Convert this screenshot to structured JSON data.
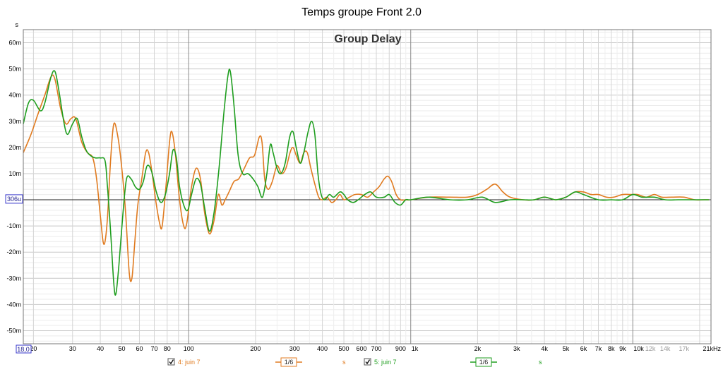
{
  "chart_data": {
    "type": "line",
    "title": "Temps groupe Front 2.0",
    "subtitle": "Group Delay",
    "y_unit_label": "s",
    "x_scale": "log",
    "xlim": [
      18,
      22500
    ],
    "ylim": [
      -0.055,
      0.065
    ],
    "grid": true,
    "y_ticks": [
      {
        "v": 0.06,
        "label": "60m"
      },
      {
        "v": 0.05,
        "label": "50m"
      },
      {
        "v": 0.04,
        "label": "40m"
      },
      {
        "v": 0.03,
        "label": "30m"
      },
      {
        "v": 0.02,
        "label": "20m"
      },
      {
        "v": 0.01,
        "label": "10m"
      },
      {
        "v": -0.01,
        "label": "-10m"
      },
      {
        "v": -0.02,
        "label": "-20m"
      },
      {
        "v": -0.03,
        "label": "-30m"
      },
      {
        "v": -0.04,
        "label": "-40m"
      },
      {
        "v": -0.05,
        "label": "-50m"
      }
    ],
    "y_marker": {
      "v": 0.000306,
      "label": "306u"
    },
    "x_marker": {
      "v": 18,
      "label": "18,0"
    },
    "x_ticks": [
      {
        "v": 20,
        "label": "20"
      },
      {
        "v": 30,
        "label": "30"
      },
      {
        "v": 40,
        "label": "40"
      },
      {
        "v": 50,
        "label": "50"
      },
      {
        "v": 60,
        "label": "60"
      },
      {
        "v": 70,
        "label": "70"
      },
      {
        "v": 80,
        "label": "80"
      },
      {
        "v": 100,
        "label": "100"
      },
      {
        "v": 200,
        "label": "200"
      },
      {
        "v": 300,
        "label": "300"
      },
      {
        "v": 400,
        "label": "400"
      },
      {
        "v": 500,
        "label": "500"
      },
      {
        "v": 600,
        "label": "600"
      },
      {
        "v": 700,
        "label": "700"
      },
      {
        "v": 900,
        "label": "900"
      },
      {
        "v": 1000,
        "label": "1k"
      },
      {
        "v": 2000,
        "label": "2k"
      },
      {
        "v": 3000,
        "label": "3k"
      },
      {
        "v": 4000,
        "label": "4k"
      },
      {
        "v": 5000,
        "label": "5k"
      },
      {
        "v": 6000,
        "label": "6k"
      },
      {
        "v": 7000,
        "label": "7k"
      },
      {
        "v": 8000,
        "label": "8k"
      },
      {
        "v": 9000,
        "label": "9k"
      },
      {
        "v": 10000,
        "label": "10k"
      },
      {
        "v": 12000,
        "label": "12k",
        "minor": true
      },
      {
        "v": 14000,
        "label": "14k",
        "minor": true
      },
      {
        "v": 17000,
        "label": "17k",
        "minor": true
      },
      {
        "v": 21000,
        "label": "21kHz"
      }
    ],
    "series": [
      {
        "name": "4: juin 7",
        "color": "#e07b20",
        "smoothing": "1/6",
        "unit": "s",
        "points": [
          [
            18,
            0.018
          ],
          [
            19.5,
            0.025
          ],
          [
            21,
            0.033
          ],
          [
            22.5,
            0.04
          ],
          [
            24,
            0.047
          ],
          [
            25,
            0.046
          ],
          [
            26.5,
            0.035
          ],
          [
            28,
            0.029
          ],
          [
            29.5,
            0.031
          ],
          [
            31,
            0.031
          ],
          [
            33,
            0.022
          ],
          [
            35,
            0.018
          ],
          [
            37,
            0.016
          ],
          [
            38.5,
            0.008
          ],
          [
            40,
            -0.006
          ],
          [
            41.5,
            -0.017
          ],
          [
            43,
            -0.008
          ],
          [
            44.5,
            0.015
          ],
          [
            46,
            0.029
          ],
          [
            48,
            0.024
          ],
          [
            50,
            0.012
          ],
          [
            52,
            -0.005
          ],
          [
            54,
            -0.028
          ],
          [
            55.5,
            -0.03
          ],
          [
            57,
            -0.018
          ],
          [
            59,
            -0.002
          ],
          [
            61.5,
            0.008
          ],
          [
            64,
            0.018
          ],
          [
            66,
            0.018
          ],
          [
            68.5,
            0.01
          ],
          [
            71,
            0.0
          ],
          [
            74,
            -0.009
          ],
          [
            76,
            -0.01
          ],
          [
            79,
            0.005
          ],
          [
            82,
            0.022
          ],
          [
            84,
            0.026
          ],
          [
            87,
            0.018
          ],
          [
            91,
            0.0
          ],
          [
            95,
            -0.01
          ],
          [
            98,
            -0.009
          ],
          [
            103,
            0.005
          ],
          [
            108,
            0.012
          ],
          [
            113,
            0.008
          ],
          [
            118,
            -0.005
          ],
          [
            124,
            -0.013
          ],
          [
            130,
            -0.008
          ],
          [
            136,
            0.002
          ],
          [
            141,
            -0.002
          ],
          [
            146,
            0.0
          ],
          [
            152,
            0.003
          ],
          [
            160,
            0.007
          ],
          [
            168,
            0.008
          ],
          [
            178,
            0.012
          ],
          [
            188,
            0.016
          ],
          [
            198,
            0.017
          ],
          [
            208,
            0.024
          ],
          [
            214,
            0.022
          ],
          [
            220,
            0.008
          ],
          [
            228,
            0.004
          ],
          [
            238,
            0.007
          ],
          [
            250,
            0.013
          ],
          [
            262,
            0.01
          ],
          [
            274,
            0.012
          ],
          [
            286,
            0.018
          ],
          [
            295,
            0.02
          ],
          [
            305,
            0.017
          ],
          [
            318,
            0.014
          ],
          [
            330,
            0.018
          ],
          [
            342,
            0.018
          ],
          [
            355,
            0.012
          ],
          [
            370,
            0.006
          ],
          [
            385,
            0.001
          ],
          [
            400,
            0.0
          ],
          [
            420,
            0.001
          ],
          [
            440,
            -0.001
          ],
          [
            460,
            0.0
          ],
          [
            480,
            0.002
          ],
          [
            500,
            0.0
          ],
          [
            530,
            0.001
          ],
          [
            560,
            0.002
          ],
          [
            600,
            0.002
          ],
          [
            640,
            0.001
          ],
          [
            680,
            0.003
          ],
          [
            720,
            0.005
          ],
          [
            760,
            0.008
          ],
          [
            790,
            0.009
          ],
          [
            820,
            0.007
          ],
          [
            860,
            0.002
          ],
          [
            900,
            0.0
          ],
          [
            950,
            0.0
          ],
          [
            1000,
            0.0
          ],
          [
            1200,
            0.001
          ],
          [
            1500,
            0.001
          ],
          [
            1800,
            0.001
          ],
          [
            2000,
            0.002
          ],
          [
            2200,
            0.004
          ],
          [
            2400,
            0.006
          ],
          [
            2600,
            0.003
          ],
          [
            2800,
            0.001
          ],
          [
            3200,
            0.0
          ],
          [
            3600,
            0.0
          ],
          [
            4000,
            0.001
          ],
          [
            4500,
            0.0
          ],
          [
            5000,
            0.001
          ],
          [
            5500,
            0.003
          ],
          [
            6000,
            0.003
          ],
          [
            6500,
            0.002
          ],
          [
            7000,
            0.002
          ],
          [
            7600,
            0.001
          ],
          [
            8200,
            0.001
          ],
          [
            9000,
            0.002
          ],
          [
            9800,
            0.002
          ],
          [
            10500,
            0.002
          ],
          [
            11500,
            0.001
          ],
          [
            12500,
            0.002
          ],
          [
            13500,
            0.001
          ],
          [
            15000,
            0.001
          ],
          [
            17000,
            0.001
          ],
          [
            19000,
            0.0
          ],
          [
            21000,
            0.0
          ],
          [
            22000,
            0.0
          ]
        ]
      },
      {
        "name": "5: juin 7",
        "color": "#1f9e1f",
        "smoothing": "1/6",
        "unit": "s",
        "points": [
          [
            18,
            0.029
          ],
          [
            19,
            0.037
          ],
          [
            20,
            0.038
          ],
          [
            21.5,
            0.034
          ],
          [
            22.5,
            0.037
          ],
          [
            24,
            0.047
          ],
          [
            25,
            0.049
          ],
          [
            26,
            0.042
          ],
          [
            27.5,
            0.029
          ],
          [
            28.5,
            0.025
          ],
          [
            30,
            0.029
          ],
          [
            31.5,
            0.031
          ],
          [
            33,
            0.024
          ],
          [
            34.5,
            0.019
          ],
          [
            36,
            0.017
          ],
          [
            38,
            0.016
          ],
          [
            40,
            0.016
          ],
          [
            42,
            0.015
          ],
          [
            43,
            0.006
          ],
          [
            44.5,
            -0.012
          ],
          [
            46,
            -0.032
          ],
          [
            47,
            -0.036
          ],
          [
            48.5,
            -0.025
          ],
          [
            50.5,
            -0.006
          ],
          [
            52.5,
            0.008
          ],
          [
            55,
            0.008
          ],
          [
            57.5,
            0.005
          ],
          [
            60,
            0.004
          ],
          [
            62.5,
            0.007
          ],
          [
            65,
            0.013
          ],
          [
            68,
            0.011
          ],
          [
            71.5,
            0.003
          ],
          [
            75,
            -0.001
          ],
          [
            78.5,
            0.002
          ],
          [
            82,
            0.01
          ],
          [
            85,
            0.019
          ],
          [
            88,
            0.016
          ],
          [
            91,
            0.005
          ],
          [
            95,
            -0.002
          ],
          [
            99,
            -0.004
          ],
          [
            103,
            0.002
          ],
          [
            108,
            0.008
          ],
          [
            113,
            0.006
          ],
          [
            118,
            -0.003
          ],
          [
            124,
            -0.012
          ],
          [
            130,
            -0.005
          ],
          [
            137,
            0.012
          ],
          [
            144,
            0.033
          ],
          [
            150,
            0.047
          ],
          [
            154,
            0.049
          ],
          [
            160,
            0.036
          ],
          [
            167,
            0.017
          ],
          [
            175,
            0.01
          ],
          [
            185,
            0.01
          ],
          [
            195,
            0.008
          ],
          [
            205,
            0.005
          ],
          [
            215,
            0.001
          ],
          [
            225,
            0.01
          ],
          [
            233,
            0.021
          ],
          [
            240,
            0.018
          ],
          [
            250,
            0.012
          ],
          [
            260,
            0.01
          ],
          [
            272,
            0.014
          ],
          [
            285,
            0.024
          ],
          [
            295,
            0.026
          ],
          [
            305,
            0.02
          ],
          [
            318,
            0.014
          ],
          [
            330,
            0.018
          ],
          [
            345,
            0.026
          ],
          [
            358,
            0.03
          ],
          [
            370,
            0.025
          ],
          [
            382,
            0.01
          ],
          [
            395,
            0.002
          ],
          [
            410,
            0.0
          ],
          [
            430,
            0.002
          ],
          [
            450,
            0.001
          ],
          [
            480,
            0.003
          ],
          [
            500,
            0.002
          ],
          [
            520,
            0.0
          ],
          [
            550,
            -0.001
          ],
          [
            580,
            0.0
          ],
          [
            620,
            0.002
          ],
          [
            660,
            0.003
          ],
          [
            700,
            0.001
          ],
          [
            760,
            0.001
          ],
          [
            800,
            0.002
          ],
          [
            850,
            -0.001
          ],
          [
            900,
            -0.002
          ],
          [
            950,
            0.0
          ],
          [
            1000,
            0.0
          ],
          [
            1200,
            0.001
          ],
          [
            1500,
            0.0
          ],
          [
            1800,
            0.0
          ],
          [
            2100,
            0.001
          ],
          [
            2400,
            -0.001
          ],
          [
            2800,
            0.0
          ],
          [
            3200,
            0.0
          ],
          [
            3600,
            0.0
          ],
          [
            4000,
            0.001
          ],
          [
            4500,
            0.0
          ],
          [
            5000,
            0.001
          ],
          [
            5500,
            0.003
          ],
          [
            6000,
            0.002
          ],
          [
            7000,
            0.0
          ],
          [
            8000,
            0.0
          ],
          [
            9000,
            0.0
          ],
          [
            10000,
            0.002
          ],
          [
            11000,
            0.001
          ],
          [
            12500,
            0.001
          ],
          [
            14000,
            0.0
          ],
          [
            16000,
            0.0
          ],
          [
            18000,
            0.0
          ],
          [
            22000,
            0.0
          ]
        ]
      }
    ],
    "legend": {
      "placement": "bottom",
      "items": [
        {
          "label": "4: juin 7",
          "checked": true,
          "smoothing": "1/6",
          "unit": "s",
          "color": "#e07b20"
        },
        {
          "label": "5: juin 7",
          "checked": true,
          "smoothing": "1/6",
          "unit": "s",
          "color": "#1f9e1f"
        }
      ]
    }
  }
}
